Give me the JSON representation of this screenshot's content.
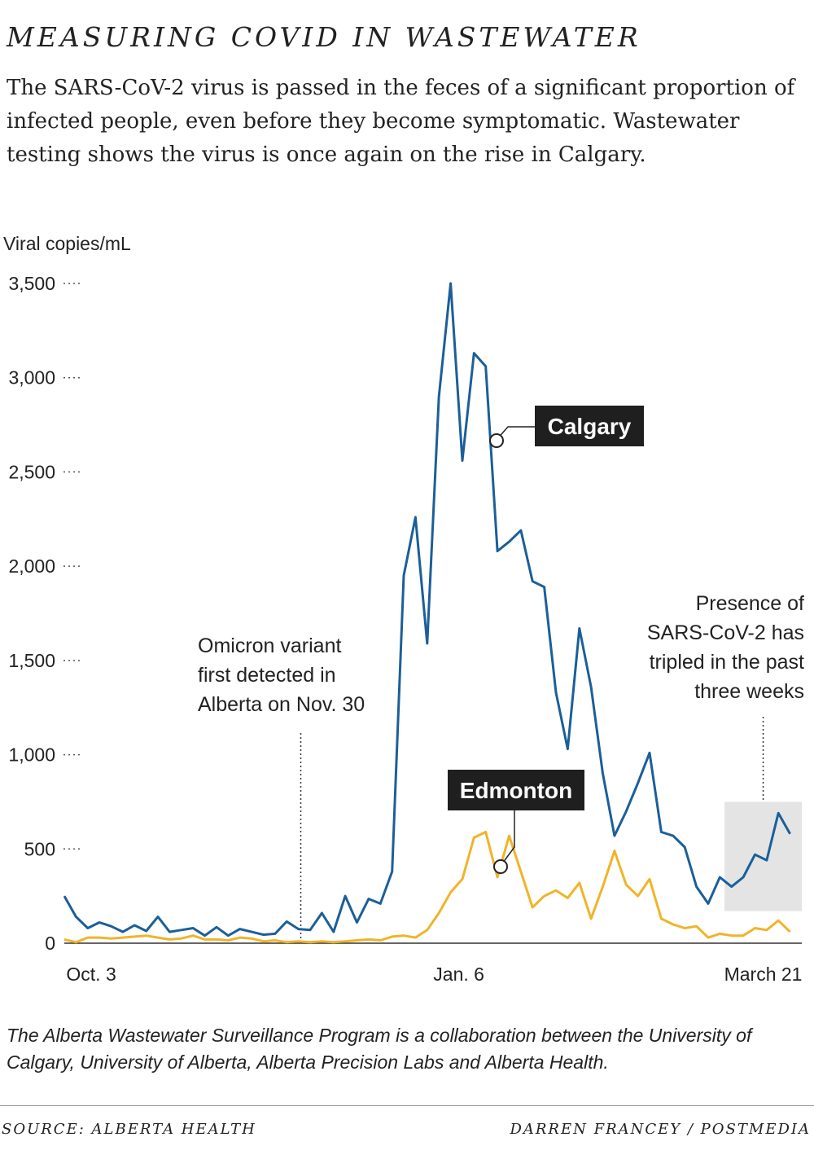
{
  "header": {
    "title": "MEASURING COVID IN WASTEWATER",
    "subtitle": "The SARS-CoV-2 virus is passed in the feces of a significant proportion of infected people, even before they become symptomatic. Wastewater testing shows the virus is once again on the rise in Calgary."
  },
  "footer": {
    "note": "The Alberta Wastewater Surveillance Program is a collaboration between the University of Calgary, University of Alberta, Alberta Precision Labs and Alberta Health.",
    "source": "SOURCE: ALBERTA HEALTH",
    "credit": "DARREN FRANCEY / POSTMEDIA"
  },
  "colors": {
    "calgary": "#1b5f99",
    "edmonton": "#f0b429",
    "highlight": "#e4e4e4",
    "label_bg": "#1f1f1f"
  },
  "chart_data": {
    "type": "line",
    "ylabel": "Viral copies/mL",
    "ylim": [
      0,
      3500
    ],
    "yticks": [
      0,
      500,
      1000,
      1500,
      2000,
      2500,
      3000,
      3500
    ],
    "ytick_labels": [
      "0",
      "500",
      "1,000",
      "1,500",
      "2,000",
      "2,500",
      "3,000",
      "3,500"
    ],
    "xlim": [
      0,
      63
    ],
    "xticks": [
      {
        "x": 2.3,
        "label": "Oct. 3"
      },
      {
        "x": 33.7,
        "label": "Jan. 6"
      },
      {
        "x": 59.7,
        "label": "March 21"
      }
    ],
    "grid": false,
    "legend": "direct labels",
    "series": [
      {
        "name": "Calgary",
        "values": [
          250,
          140,
          80,
          110,
          90,
          60,
          95,
          65,
          140,
          60,
          70,
          80,
          40,
          85,
          40,
          75,
          60,
          45,
          50,
          115,
          75,
          70,
          160,
          60,
          250,
          110,
          235,
          210,
          380,
          1950,
          2260,
          1590,
          2900,
          3500,
          2560,
          3130,
          3060,
          2080,
          2130,
          2190,
          1920,
          1890,
          1330,
          1030,
          1670,
          1360,
          900,
          570,
          700,
          850,
          1010,
          590,
          570,
          510,
          300,
          210,
          350,
          300,
          350,
          470,
          440,
          690,
          580
        ]
      },
      {
        "name": "Edmonton",
        "values": [
          20,
          5,
          30,
          30,
          25,
          30,
          35,
          40,
          30,
          20,
          25,
          40,
          20,
          20,
          15,
          30,
          25,
          10,
          15,
          5,
          10,
          5,
          10,
          5,
          10,
          15,
          20,
          15,
          35,
          40,
          30,
          70,
          160,
          270,
          340,
          560,
          590,
          350,
          570,
          380,
          190,
          250,
          280,
          240,
          320,
          130,
          300,
          490,
          310,
          250,
          340,
          130,
          100,
          80,
          90,
          30,
          50,
          40,
          40,
          80,
          70,
          120,
          60
        ]
      }
    ],
    "annotations": [
      {
        "text": "Omicron variant\nfirst detected in\nAlberta on Nov. 30",
        "x": 20.2
      },
      {
        "text": "Presence of\nSARS-CoV-2 has\ntripled in the past\nthree weeks",
        "x": 59.7
      }
    ]
  }
}
